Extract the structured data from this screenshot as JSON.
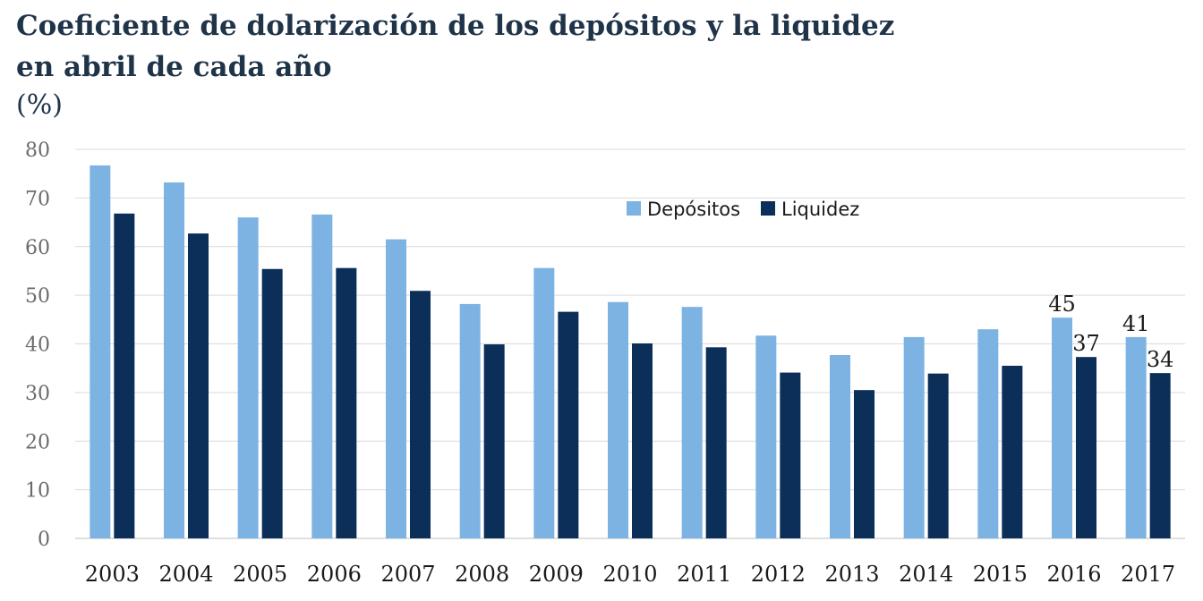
{
  "chart_data": {
    "type": "bar",
    "title_line1": "Coeficiente de dolarización de los depósitos y la liquidez",
    "title_line2": "en abril de cada año",
    "ylabel": "(%)",
    "xlabel": "",
    "ylim": [
      0,
      80
    ],
    "yticks": [
      0,
      10,
      20,
      30,
      40,
      50,
      60,
      70,
      80
    ],
    "grid": true,
    "legend_position": "top-right",
    "categories": [
      "2003",
      "2004",
      "2005",
      "2006",
      "2007",
      "2008",
      "2009",
      "2010",
      "2011",
      "2012",
      "2013",
      "2014",
      "2015",
      "2016",
      "2017"
    ],
    "series": [
      {
        "name": "Depósitos",
        "color": "#7db3e3",
        "values": [
          76.7,
          73.2,
          66.0,
          66.6,
          61.5,
          48.2,
          55.6,
          48.6,
          47.6,
          41.7,
          37.7,
          41.4,
          43.0,
          45.4,
          41.4
        ]
      },
      {
        "name": "Liquidez",
        "color": "#0b2f59",
        "values": [
          66.8,
          62.7,
          55.4,
          55.6,
          50.9,
          39.9,
          46.6,
          40.1,
          39.3,
          34.1,
          30.5,
          33.9,
          35.5,
          37.3,
          34.0
        ]
      }
    ],
    "data_labels": [
      {
        "category": "2016",
        "series": "Depósitos",
        "text": "45"
      },
      {
        "category": "2016",
        "series": "Liquidez",
        "text": "37"
      },
      {
        "category": "2017",
        "series": "Depósitos",
        "text": "41"
      },
      {
        "category": "2017",
        "series": "Liquidez",
        "text": "34"
      }
    ]
  }
}
